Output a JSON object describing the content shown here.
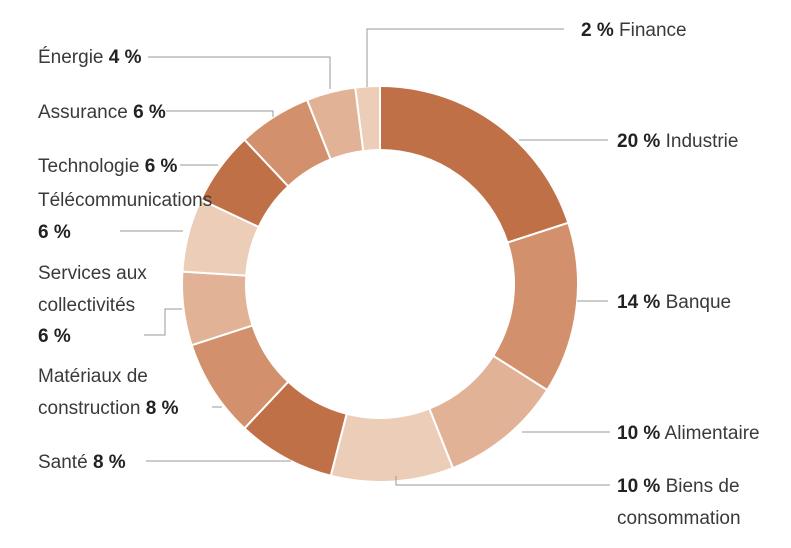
{
  "chart_data": {
    "type": "pie",
    "variant": "donut",
    "title": "",
    "legend": "none",
    "colors": {
      "dark": "#c07047",
      "medium": "#d2916c",
      "light": "#e1b295",
      "pale": "#ebcdb8"
    },
    "slices": [
      {
        "name": "Finance",
        "value": 2,
        "pct": "2 %",
        "color": "#ebcdb8"
      },
      {
        "name": "Industrie",
        "value": 20,
        "pct": "20 %",
        "color": "#c07047"
      },
      {
        "name": "Banque",
        "value": 14,
        "pct": "14 %",
        "color": "#d2916c"
      },
      {
        "name": "Alimentaire",
        "value": 10,
        "pct": "10 %",
        "color": "#e1b295"
      },
      {
        "name": "Biens de consommation",
        "value": 10,
        "pct": "10 %",
        "color": "#ebcdb8"
      },
      {
        "name": "Santé",
        "value": 8,
        "pct": "8 %",
        "color": "#c07047"
      },
      {
        "name": "Matériaux de construction",
        "value": 8,
        "pct": "8 %",
        "color": "#d2916c"
      },
      {
        "name": "Services aux collectivités",
        "value": 6,
        "pct": "6 %",
        "color": "#e1b295"
      },
      {
        "name": "Télécommunications",
        "value": 6,
        "pct": "6 %",
        "color": "#ebcdb8"
      },
      {
        "name": "Technologie",
        "value": 6,
        "pct": "6 %",
        "color": "#c07047"
      },
      {
        "name": "Assurance",
        "value": 6,
        "pct": "6 %",
        "color": "#d2916c"
      },
      {
        "name": "Énergie",
        "value": 4,
        "pct": "4 %",
        "color": "#e1b295"
      }
    ],
    "labels": {
      "finance": {
        "pct": "2 %",
        "name": "Finance"
      },
      "industrie": {
        "pct": "20 %",
        "name": "Industrie"
      },
      "banque": {
        "pct": "14 %",
        "name": "Banque"
      },
      "alimentaire": {
        "pct": "10 %",
        "name": "Alimentaire"
      },
      "biens": {
        "pct": "10 %",
        "line1": "Biens de",
        "line2": "consommation"
      },
      "sante": {
        "name": "Santé",
        "pct": "8 %"
      },
      "materiaux": {
        "line1": "Matériaux de",
        "line2": "construction",
        "pct": "8 %"
      },
      "services": {
        "line1": "Services aux",
        "line2": "collectivités",
        "pct": "6 %"
      },
      "telecom": {
        "name": "Télécommunications",
        "pct": "6 %"
      },
      "technologie": {
        "name": "Technologie",
        "pct": "6 %"
      },
      "assurance": {
        "name": "Assurance",
        "pct": "6 %"
      },
      "energie": {
        "name": "Énergie",
        "pct": "4 %"
      }
    }
  }
}
